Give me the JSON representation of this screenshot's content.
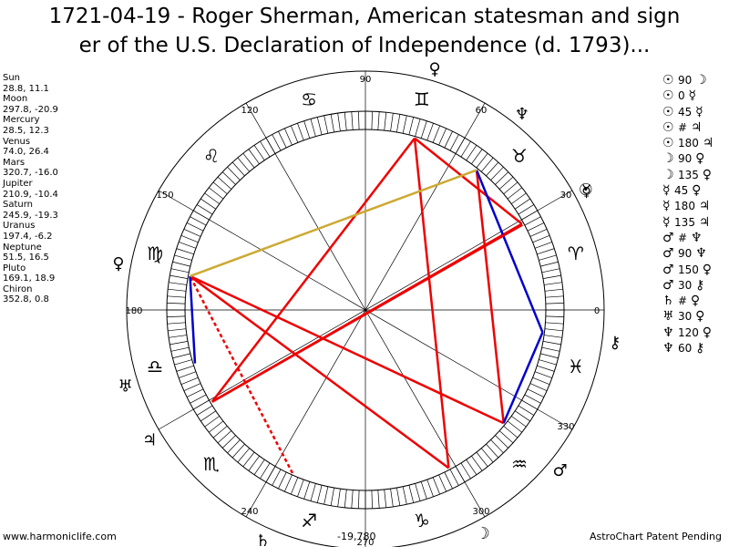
{
  "title_line1": "1721-04-19 - Roger Sherman, American statesman and sign",
  "title_line2": "er of the U.S. Declaration of Independence (d. 1793)...",
  "planets": [
    {
      "name": "Sun",
      "pos": "28.8, 11.1"
    },
    {
      "name": "Moon",
      "pos": "297.8, -20.9"
    },
    {
      "name": "Mercury",
      "pos": "28.5, 12.3"
    },
    {
      "name": "Venus",
      "pos": "74.0, 26.4"
    },
    {
      "name": "Mars",
      "pos": "320.7, -16.0"
    },
    {
      "name": "Jupiter",
      "pos": "210.9, -10.4"
    },
    {
      "name": "Saturn",
      "pos": "245.9, -19.3"
    },
    {
      "name": "Uranus",
      "pos": "197.4, -6.2"
    },
    {
      "name": "Neptune",
      "pos": "51.5, 16.5"
    },
    {
      "name": "Pluto",
      "pos": "169.1, 18.9"
    },
    {
      "name": "Chiron",
      "pos": "352.8, 0.8"
    }
  ],
  "aspects": [
    {
      "a": "☉",
      "angle": "90",
      "b": "☽"
    },
    {
      "a": "☉",
      "angle": "0",
      "b": "☿"
    },
    {
      "a": "☉",
      "angle": "45",
      "b": "☿"
    },
    {
      "a": "☉",
      "angle": "#",
      "b": "♃"
    },
    {
      "a": "☉",
      "angle": "180",
      "b": "♃"
    },
    {
      "a": "☽",
      "angle": "90",
      "b": "♀"
    },
    {
      "a": "☽",
      "angle": "135",
      "b": "♀"
    },
    {
      "a": "☿",
      "angle": "45",
      "b": "♀"
    },
    {
      "a": "☿",
      "angle": "180",
      "b": "♃"
    },
    {
      "a": "☿",
      "angle": "135",
      "b": "♃"
    },
    {
      "a": "♂",
      "angle": "#",
      "b": "♆"
    },
    {
      "a": "♂",
      "angle": "90",
      "b": "♆"
    },
    {
      "a": "♂",
      "angle": "150",
      "b": "♀"
    },
    {
      "a": "♂",
      "angle": "30",
      "b": "⚷"
    },
    {
      "a": "♄",
      "angle": "#",
      "b": "♀"
    },
    {
      "a": "♅",
      "angle": "30",
      "b": "♀"
    },
    {
      "a": "♆",
      "angle": "120",
      "b": "♀"
    },
    {
      "a": "♆",
      "angle": "60",
      "b": "⚷"
    }
  ],
  "wheel": {
    "degree_labels": [
      {
        "text": "90",
        "deg": 90
      },
      {
        "text": "120",
        "deg": 120
      },
      {
        "text": "60",
        "deg": 60
      },
      {
        "text": "150",
        "deg": 150
      },
      {
        "text": "30",
        "deg": 30
      },
      {
        "text": "180",
        "deg": 180
      },
      {
        "text": "0",
        "deg": 0
      },
      {
        "text": "240",
        "deg": 240
      },
      {
        "text": "300",
        "deg": 300
      },
      {
        "text": "330",
        "deg": 330
      },
      {
        "text": "270",
        "deg": 270
      }
    ],
    "signs": [
      "♈",
      "♉",
      "♊",
      "♋",
      "♌",
      "♍",
      "♎",
      "♏",
      "♐",
      "♑",
      "♒",
      "♓"
    ],
    "planet_glyphs": [
      {
        "glyph": "☉",
        "lon": 28.8
      },
      {
        "glyph": "☽",
        "lon": 297.8
      },
      {
        "glyph": "☿",
        "lon": 28.5
      },
      {
        "glyph": "♀",
        "lon": 74.0
      },
      {
        "glyph": "♂",
        "lon": 320.7
      },
      {
        "glyph": "♃",
        "lon": 210.9
      },
      {
        "glyph": "♄",
        "lon": 245.9
      },
      {
        "glyph": "♅",
        "lon": 197.4
      },
      {
        "glyph": "♆",
        "lon": 51.5
      },
      {
        "glyph": "♀",
        "lon": 169.1
      },
      {
        "glyph": "⚷",
        "lon": 352.8
      }
    ],
    "aspect_colors": {
      "red": "#ee0000",
      "blue": "#0000cc",
      "gold": "#ccaa33"
    }
  },
  "footer": {
    "left": "www.harmoniclife.com",
    "center": "-19,780",
    "right": "AstroChart Patent Pending"
  }
}
